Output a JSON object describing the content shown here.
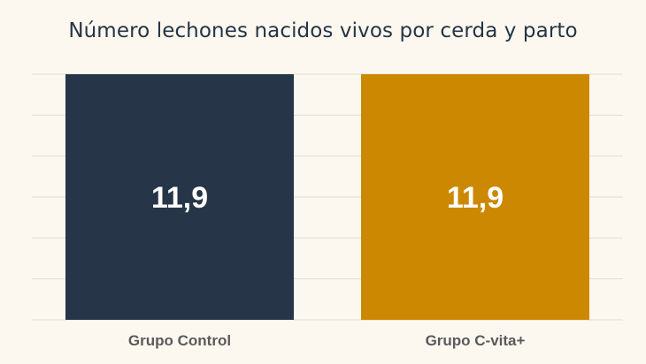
{
  "chart_data": {
    "type": "bar",
    "title": "Número lechones nacidos vivos por cerda y parto",
    "categories": [
      "Grupo Control",
      "Grupo C-vita+"
    ],
    "values": [
      11.9,
      11.9
    ],
    "value_labels": [
      "11,9",
      "11,9"
    ],
    "colors": [
      "#263648",
      "#cc8800"
    ],
    "xlabel": "",
    "ylabel": "",
    "ylim": [
      0,
      11.9
    ],
    "grid": true,
    "gridline_count": 7,
    "legend": "none"
  }
}
